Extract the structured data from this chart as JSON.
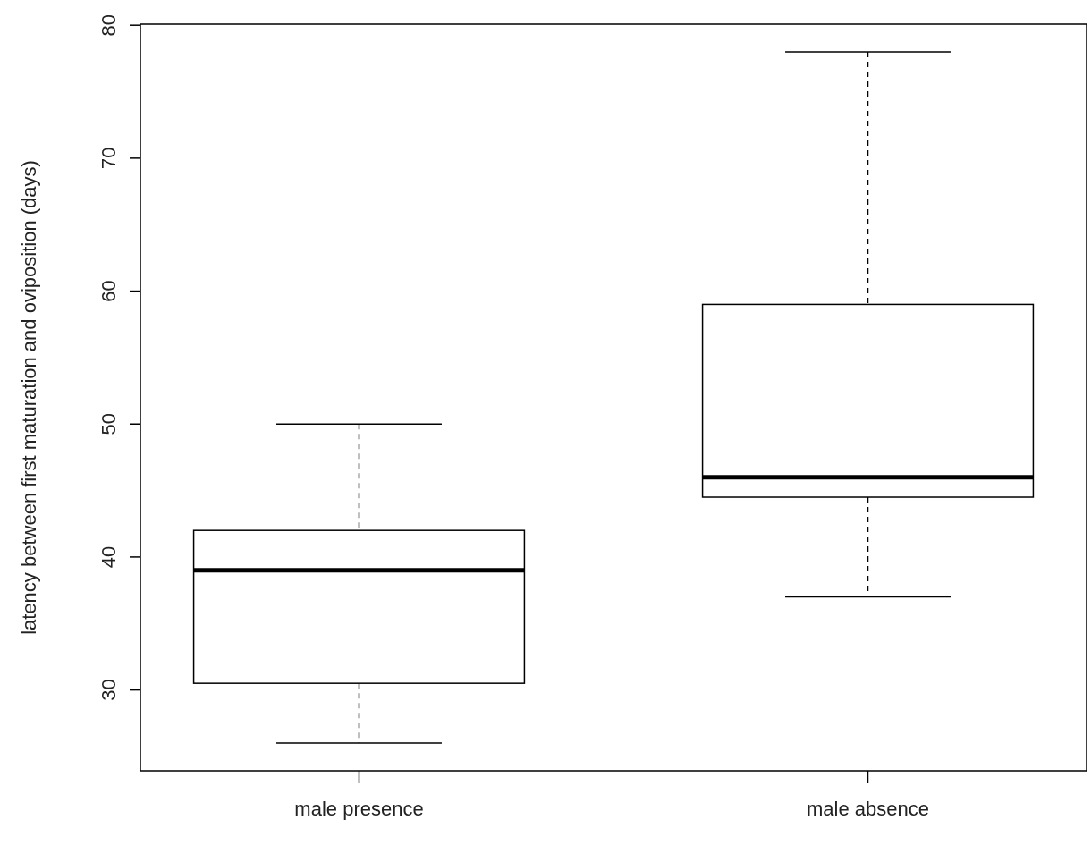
{
  "chart_data": {
    "type": "box",
    "ylabel": "latency between first maturation and oviposition (days)",
    "categories": [
      "male presence",
      "male absence"
    ],
    "boxes": [
      {
        "low": 26,
        "q1": 30.5,
        "median": 39,
        "q3": 42,
        "high": 50
      },
      {
        "low": 37,
        "q1": 44.5,
        "median": 46,
        "q3": 59,
        "high": 78
      }
    ],
    "ylim": [
      23.92,
      80.08
    ],
    "yticks": [
      30,
      40,
      50,
      60,
      70,
      80
    ],
    "grid": false,
    "color": "#ffffff"
  }
}
